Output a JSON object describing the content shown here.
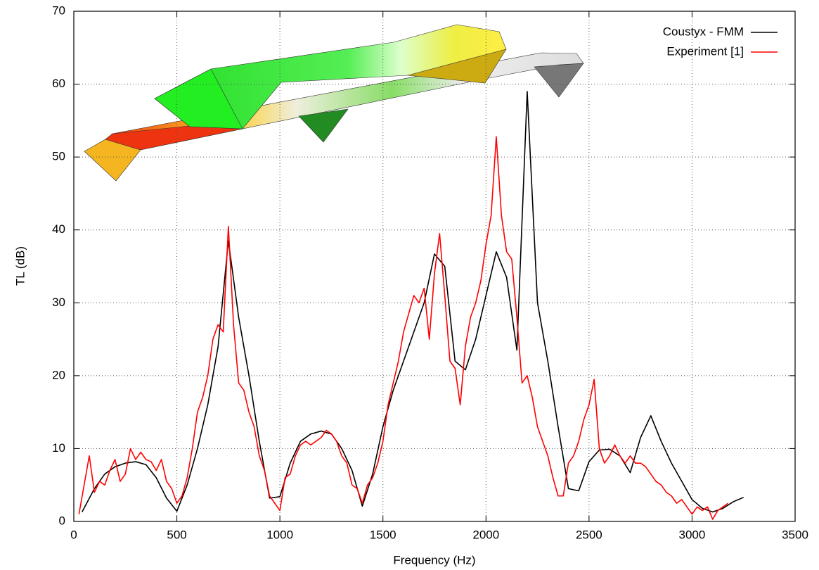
{
  "chart_data": {
    "type": "line",
    "x_label": "Frequency (Hz)",
    "y_label": "TL (dB)",
    "xlim": [
      0,
      3500
    ],
    "ylim": [
      0,
      70
    ],
    "xticks": [
      0,
      500,
      1000,
      1500,
      2000,
      2500,
      3000,
      3500
    ],
    "yticks": [
      0,
      10,
      20,
      30,
      40,
      50,
      60,
      70
    ],
    "grid": true,
    "legend": "upper right",
    "series": [
      {
        "name": "Coustyx - FMM",
        "color": "#000000",
        "x": [
          40,
          100,
          150,
          200,
          250,
          300,
          350,
          400,
          450,
          500,
          550,
          600,
          650,
          700,
          750,
          800,
          850,
          900,
          950,
          1000,
          1050,
          1100,
          1150,
          1200,
          1250,
          1300,
          1350,
          1400,
          1450,
          1500,
          1550,
          1600,
          1650,
          1700,
          1750,
          1800,
          1850,
          1900,
          1950,
          2000,
          2050,
          2100,
          2150,
          2200,
          2250,
          2300,
          2350,
          2400,
          2450,
          2500,
          2550,
          2600,
          2650,
          2700,
          2750,
          2800,
          2850,
          2900,
          2950,
          3000,
          3050,
          3100,
          3150,
          3200,
          3250
        ],
        "values": [
          1.3,
          4.5,
          6.5,
          7.5,
          8,
          8.2,
          7.8,
          6,
          3.2,
          1.4,
          5,
          10,
          16,
          24,
          38.5,
          28,
          20,
          11,
          3.2,
          3.4,
          8,
          11,
          12,
          12.4,
          12,
          10,
          7,
          2.1,
          6.5,
          13,
          18,
          22,
          26,
          30,
          36.7,
          35,
          22,
          20.8,
          25,
          31,
          37,
          33.5,
          23.5,
          59,
          30,
          22,
          13,
          4.5,
          4.2,
          8.2,
          9.8,
          9.9,
          9,
          6.7,
          11.5,
          14.5,
          11,
          8,
          5.5,
          3,
          1.8,
          1.3,
          1.8,
          2.7,
          3.3
        ]
      },
      {
        "name": "Experiment [1]",
        "color": "#ff0000",
        "x": [
          25,
          50,
          75,
          100,
          125,
          150,
          175,
          200,
          225,
          250,
          275,
          300,
          325,
          350,
          375,
          400,
          425,
          450,
          475,
          500,
          525,
          550,
          575,
          600,
          625,
          650,
          675,
          700,
          725,
          750,
          775,
          800,
          825,
          850,
          875,
          900,
          925,
          950,
          975,
          1000,
          1025,
          1050,
          1075,
          1100,
          1125,
          1150,
          1175,
          1200,
          1225,
          1250,
          1275,
          1300,
          1325,
          1350,
          1375,
          1400,
          1425,
          1450,
          1475,
          1500,
          1525,
          1550,
          1575,
          1600,
          1625,
          1650,
          1675,
          1700,
          1725,
          1750,
          1775,
          1800,
          1825,
          1850,
          1875,
          1900,
          1925,
          1950,
          1975,
          2000,
          2025,
          2050,
          2075,
          2100,
          2125,
          2150,
          2175,
          2200,
          2225,
          2250,
          2275,
          2300,
          2325,
          2350,
          2375,
          2400,
          2425,
          2450,
          2475,
          2500,
          2525,
          2550,
          2575,
          2600,
          2625,
          2650,
          2675,
          2700,
          2725,
          2750,
          2775,
          2800,
          2825,
          2850,
          2875,
          2900,
          2925,
          2950,
          2975,
          3000,
          3025,
          3050,
          3075,
          3100,
          3125,
          3150,
          3175
        ],
        "values": [
          1,
          5,
          9,
          4,
          5.5,
          5,
          7,
          8.5,
          5.5,
          6.5,
          10,
          8.5,
          9.5,
          8.5,
          8.2,
          7,
          8.5,
          5.5,
          4.5,
          2.5,
          3.5,
          6,
          10,
          15,
          17,
          20,
          25,
          27,
          26,
          40.5,
          27,
          19,
          18,
          15,
          13,
          9,
          7,
          3.5,
          2.5,
          1.5,
          6,
          6.5,
          9,
          10.5,
          11,
          10.5,
          11,
          11.5,
          12.5,
          12,
          11,
          9,
          8,
          5,
          4.5,
          2.5,
          5,
          6,
          8,
          11,
          16,
          19,
          22,
          26,
          28.5,
          31,
          30,
          32,
          25,
          34,
          39.5,
          31,
          22,
          21,
          16,
          24,
          28,
          30,
          33,
          38,
          42,
          52.8,
          42,
          37,
          36,
          28,
          19,
          20,
          17,
          13,
          11,
          9,
          6,
          3.5,
          3.5,
          8,
          9,
          11,
          14,
          16,
          19.5,
          10,
          8,
          9,
          10.5,
          9,
          8,
          9,
          8,
          8,
          7.5,
          6.5,
          5.5,
          5,
          4,
          3.5,
          2.5,
          3,
          2,
          1,
          2,
          1.5,
          2,
          0.3,
          1.5,
          2,
          2.5
        ]
      }
    ]
  }
}
